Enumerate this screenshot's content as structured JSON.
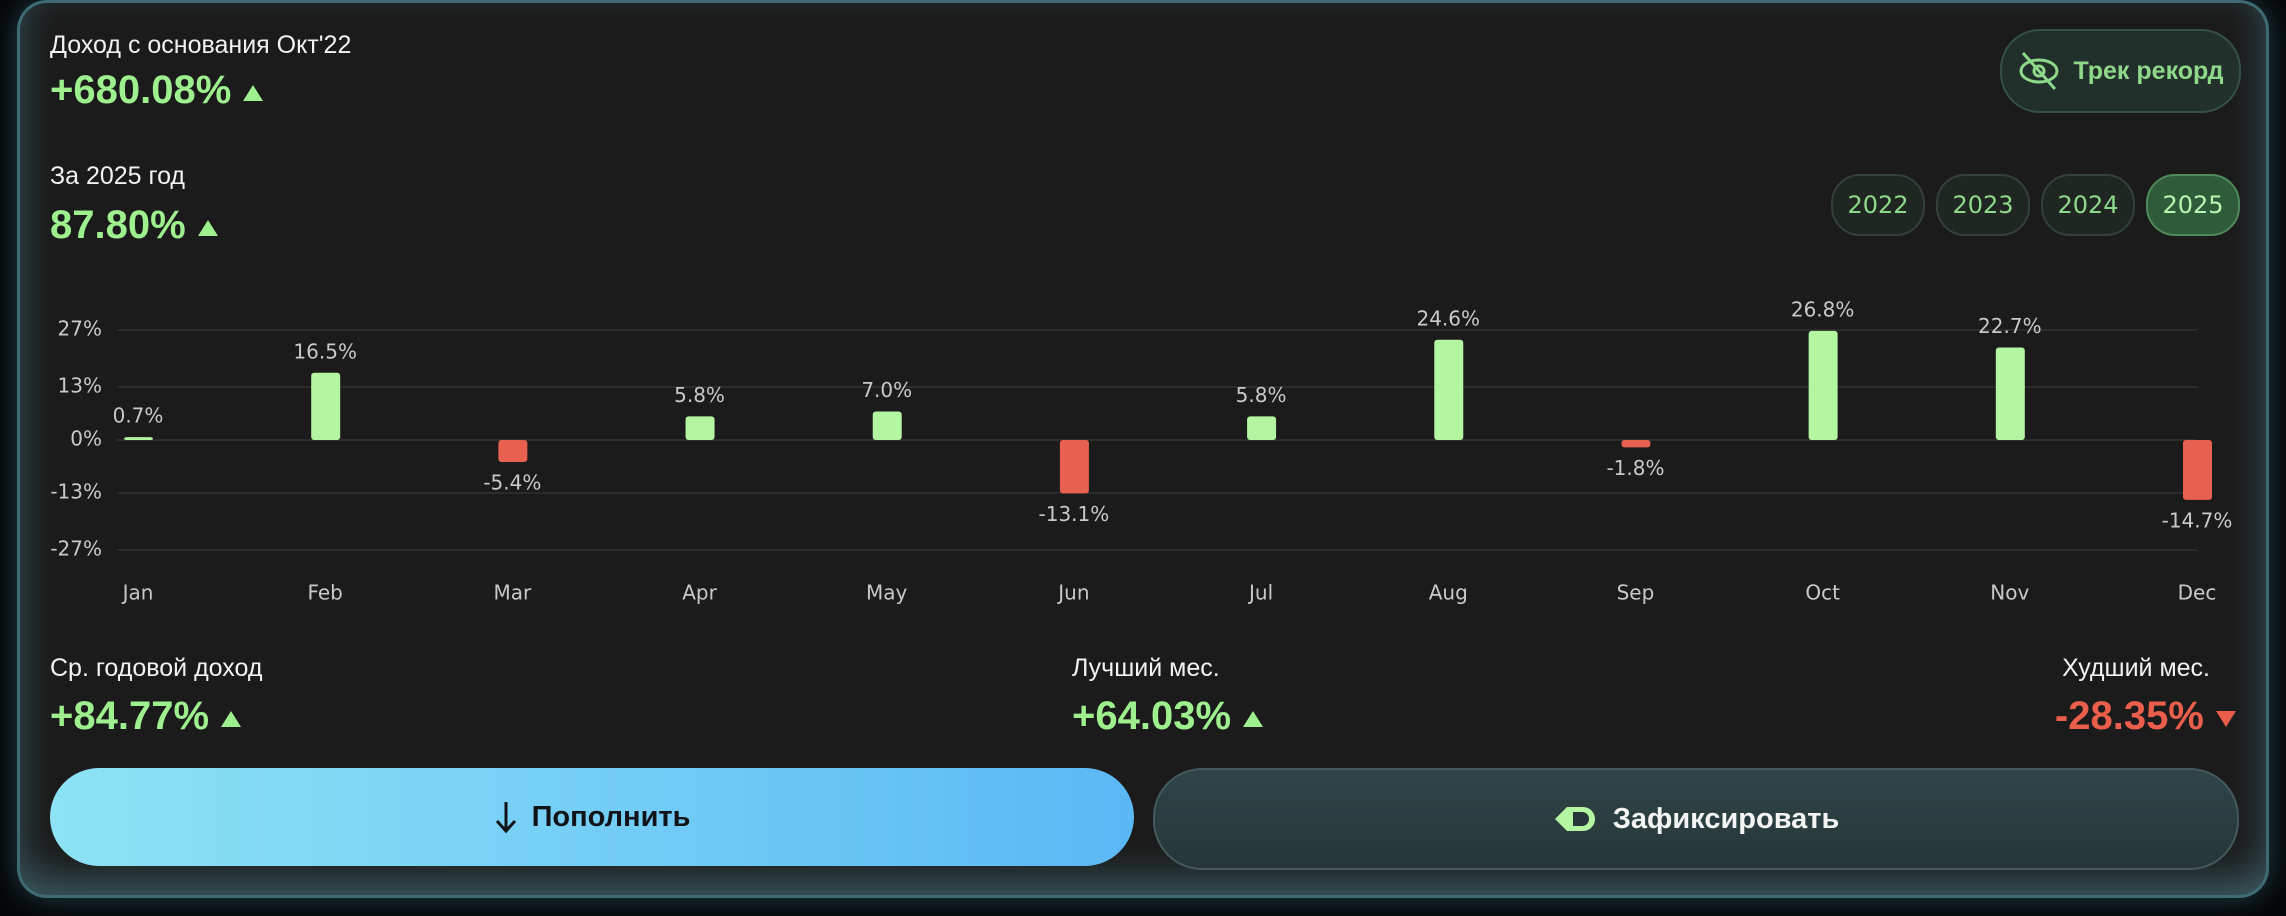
{
  "header": {
    "label": "Доход с основания Окт'22",
    "value": "+680.08%",
    "button": "Трек рекорд"
  },
  "year_stat": {
    "label": "За 2025 год",
    "value": "87.80%"
  },
  "years": [
    "2022",
    "2023",
    "2024",
    "2025"
  ],
  "chart_data": {
    "type": "bar",
    "categories": [
      "Jan",
      "Feb",
      "Mar",
      "Apr",
      "May",
      "Jun",
      "Jul",
      "Aug",
      "Sep",
      "Oct",
      "Nov",
      "Dec"
    ],
    "values": [
      0.7,
      16.5,
      -5.4,
      5.8,
      7.0,
      -13.1,
      5.8,
      24.6,
      -1.8,
      26.8,
      22.7,
      -14.7
    ],
    "value_labels": [
      "0.7%",
      "16.5%",
      "-5.4%",
      "5.8%",
      "7.0%",
      "-13.1%",
      "5.8%",
      "24.6%",
      "-1.8%",
      "26.8%",
      "22.7%",
      "-14.7%"
    ],
    "positive_color": "#b3f5a0",
    "negative_color": "#e8604f",
    "ylim": [
      -27,
      27
    ],
    "yticks": [
      {
        "value": 27,
        "label": "27%"
      },
      {
        "value": 13,
        "label": "13%"
      },
      {
        "value": 0,
        "label": "0%"
      },
      {
        "value": -13,
        "label": "-13%"
      },
      {
        "value": -27,
        "label": "-27%"
      }
    ],
    "grid": true
  },
  "stats": [
    {
      "label": "Ср. годовой доход",
      "value": "+84.77%"
    },
    {
      "label": "Лучший мес.",
      "value": "+64.03%"
    },
    {
      "label": "Худший мес.",
      "value": "-28.35%"
    }
  ],
  "buttons": [
    "Пополнить",
    "Зафиксировать"
  ]
}
